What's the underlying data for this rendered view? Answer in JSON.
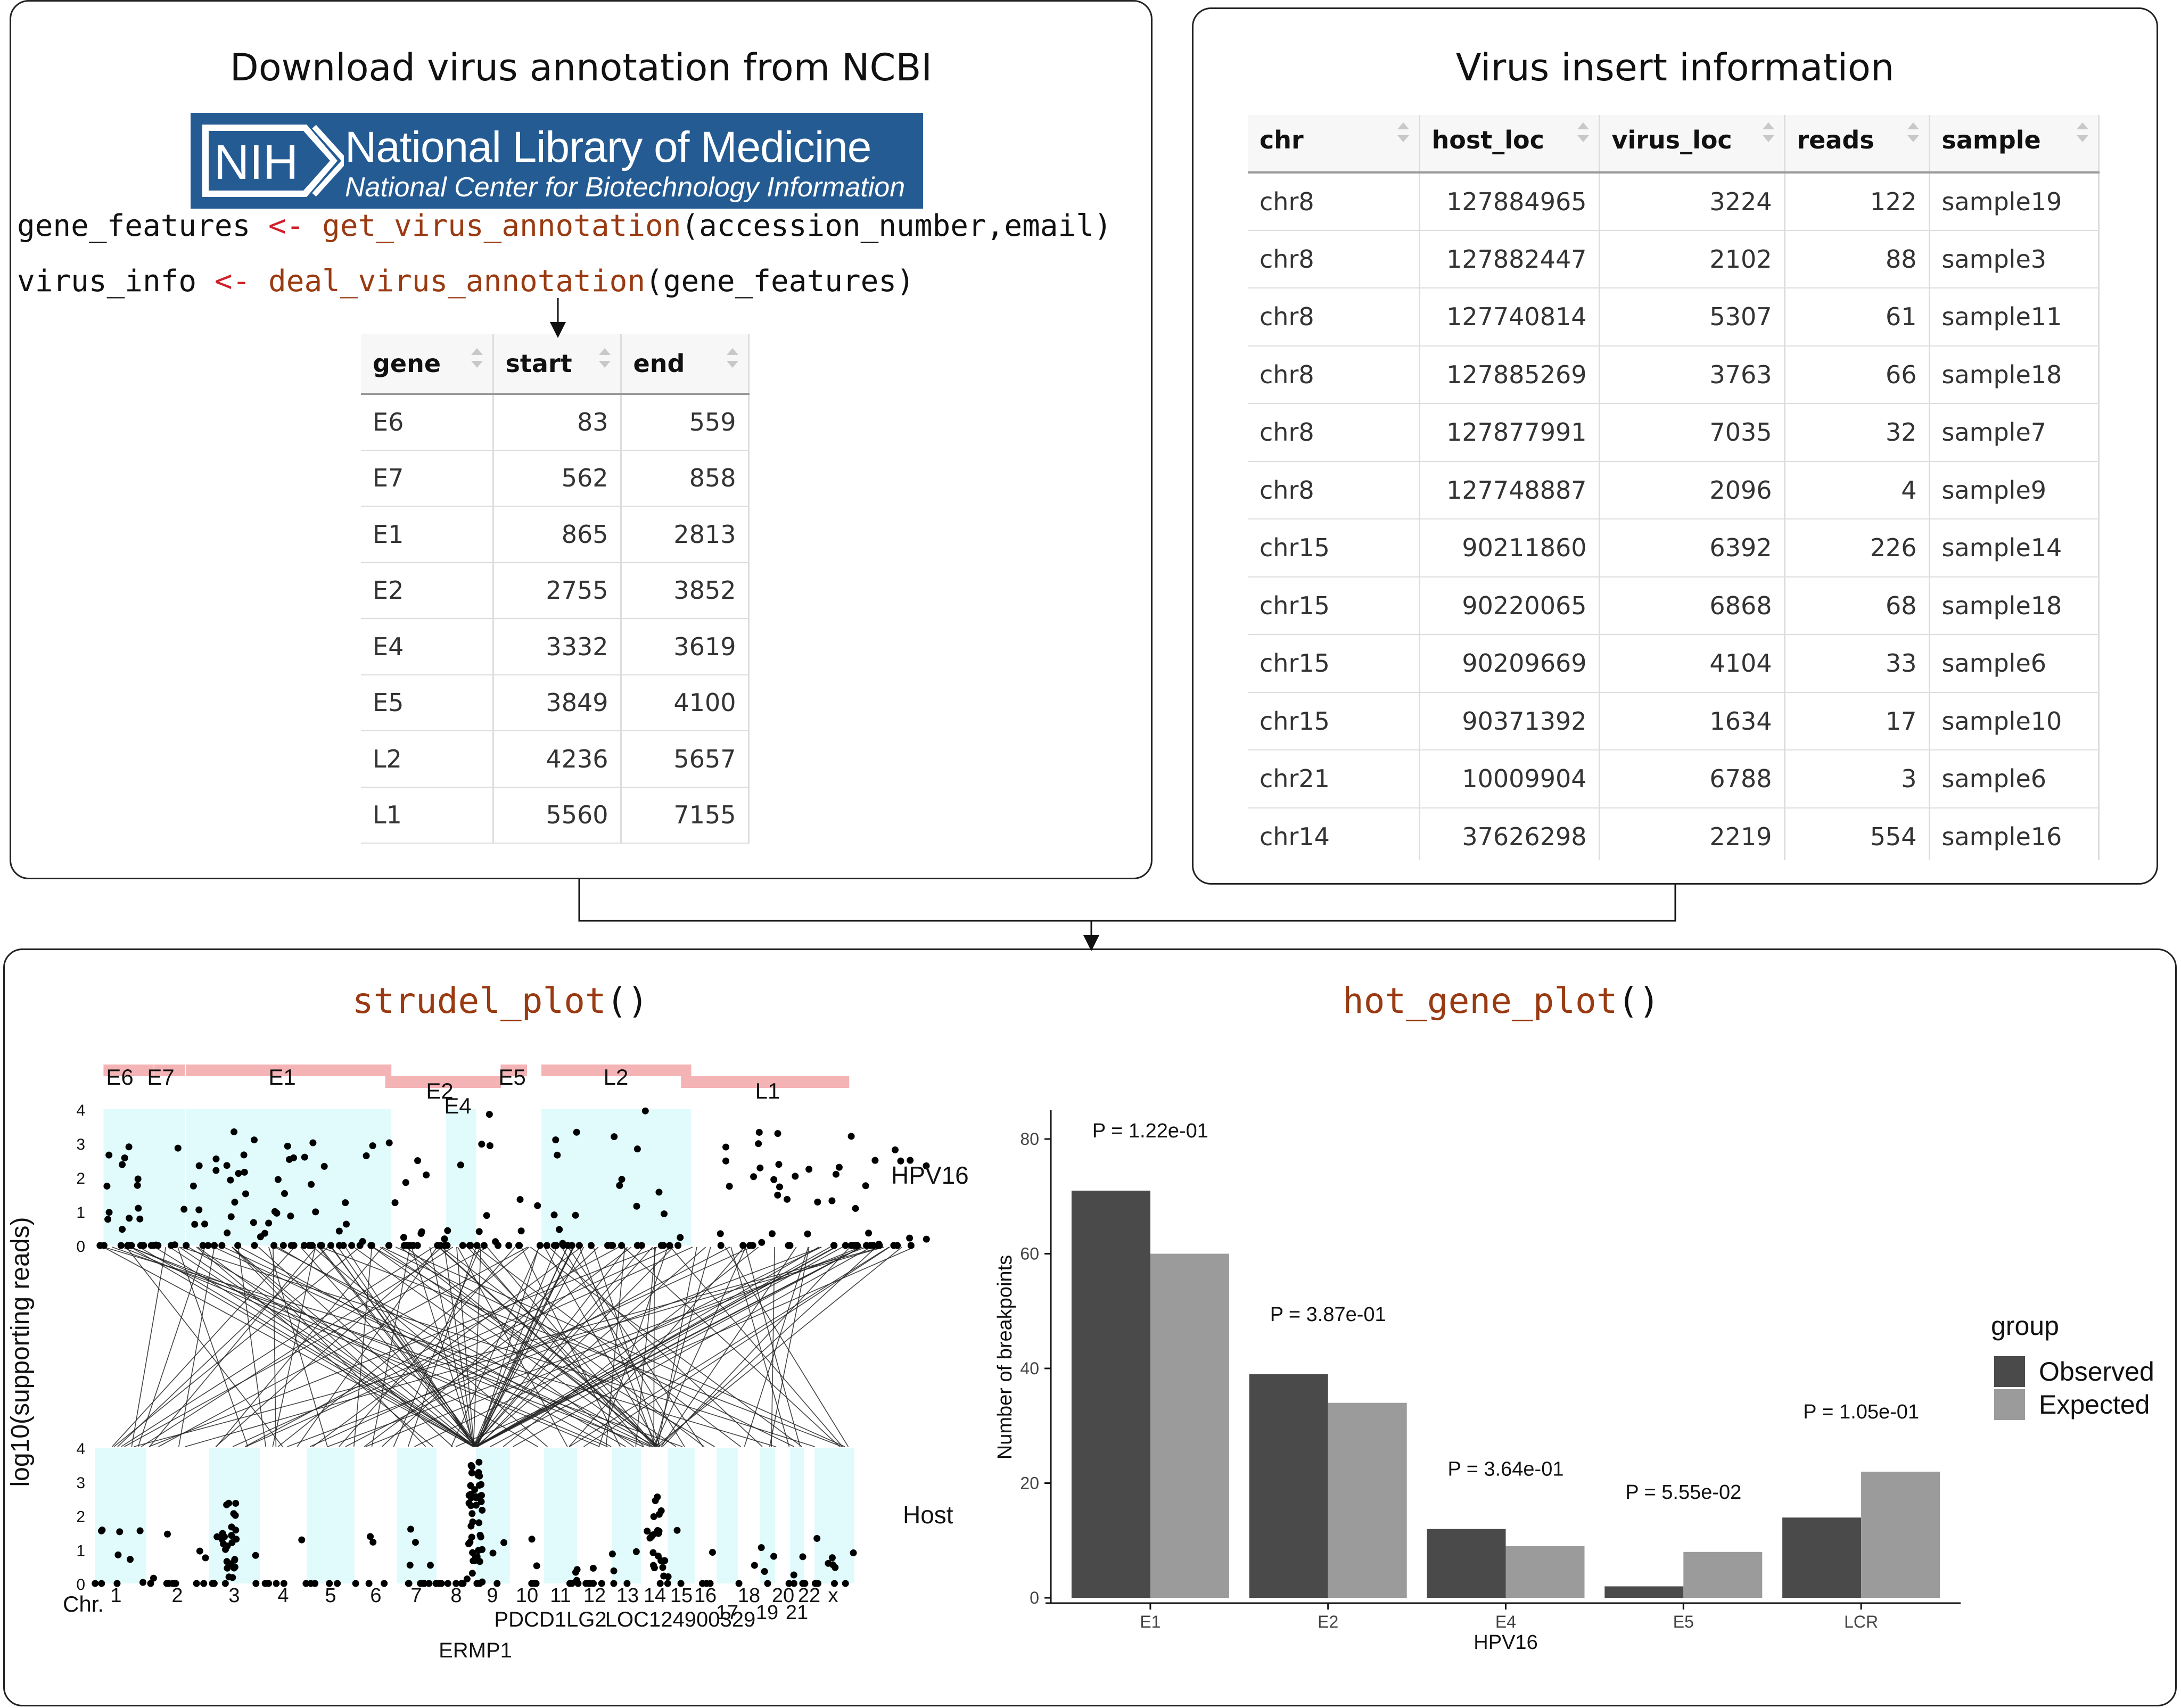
{
  "left_panel": {
    "title": "Download virus annotation from NCBI",
    "logo": {
      "badge": "NIH",
      "line1": "National Library of Medicine",
      "line2": "National Center for Biotechnology Information"
    },
    "code1": {
      "var": "gene_features",
      "op": "<-",
      "fn": "get_virus_annotation",
      "args": "(accession_number,email)"
    },
    "code2": {
      "var": "virus_info",
      "op": "<-",
      "fn": "deal_virus_annotation",
      "args": "(gene_features)"
    },
    "table": {
      "columns": [
        "gene",
        "start",
        "end"
      ],
      "rows": [
        [
          "E6",
          "83",
          "559"
        ],
        [
          "E7",
          "562",
          "858"
        ],
        [
          "E1",
          "865",
          "2813"
        ],
        [
          "E2",
          "2755",
          "3852"
        ],
        [
          "E4",
          "3332",
          "3619"
        ],
        [
          "E5",
          "3849",
          "4100"
        ],
        [
          "L2",
          "4236",
          "5657"
        ],
        [
          "L1",
          "5560",
          "7155"
        ]
      ]
    }
  },
  "right_panel": {
    "title": "Virus insert information",
    "table": {
      "columns": [
        "chr",
        "host_loc",
        "virus_loc",
        "reads",
        "sample"
      ],
      "rows": [
        [
          "chr8",
          "127884965",
          "3224",
          "122",
          "sample19"
        ],
        [
          "chr8",
          "127882447",
          "2102",
          "88",
          "sample3"
        ],
        [
          "chr8",
          "127740814",
          "5307",
          "61",
          "sample11"
        ],
        [
          "chr8",
          "127885269",
          "3763",
          "66",
          "sample18"
        ],
        [
          "chr8",
          "127877991",
          "7035",
          "32",
          "sample7"
        ],
        [
          "chr8",
          "127748887",
          "2096",
          "4",
          "sample9"
        ],
        [
          "chr15",
          "90211860",
          "6392",
          "226",
          "sample14"
        ],
        [
          "chr15",
          "90220065",
          "6868",
          "68",
          "sample18"
        ],
        [
          "chr15",
          "90209669",
          "4104",
          "33",
          "sample6"
        ],
        [
          "chr15",
          "90371392",
          "1634",
          "17",
          "sample10"
        ],
        [
          "chr21",
          "10009904",
          "6788",
          "3",
          "sample6"
        ],
        [
          "chr14",
          "37626298",
          "2219",
          "554",
          "sample16"
        ]
      ]
    }
  },
  "bottom_panel": {
    "strudel": {
      "title_fn": "strudel_plot",
      "title_paren": "()",
      "ylabel": "log10(supporting reads)",
      "virus_label": "HPV16",
      "host_label": "Host",
      "chr_label": "Chr.",
      "genes": [
        {
          "name": "E6",
          "start": 83,
          "end": 559
        },
        {
          "name": "E7",
          "start": 562,
          "end": 858
        },
        {
          "name": "E1",
          "start": 865,
          "end": 2813
        },
        {
          "name": "E2",
          "start": 2755,
          "end": 3852
        },
        {
          "name": "E4",
          "start": 3332,
          "end": 3619
        },
        {
          "name": "E5",
          "start": 3849,
          "end": 4100
        },
        {
          "name": "L2",
          "start": 4236,
          "end": 5657
        },
        {
          "name": "L1",
          "start": 5560,
          "end": 7155
        }
      ],
      "yticks": [
        "0",
        "1",
        "2",
        "3",
        "4"
      ],
      "chromosomes": [
        "1",
        "2",
        "3",
        "4",
        "5",
        "6",
        "7",
        "8",
        "9",
        "10",
        "11",
        "12",
        "13",
        "14",
        "15",
        "16",
        "17",
        "18",
        "19",
        "20",
        "21",
        "22",
        "x"
      ],
      "host_genes": [
        "PDCD1LG2",
        "LOC124900329",
        "ERMP1"
      ]
    },
    "hot_gene": {
      "title_fn": "hot_gene_plot",
      "title_paren": "()",
      "chart_data": {
        "type": "bar",
        "categories": [
          "E1",
          "E2",
          "E4",
          "E5",
          "LCR"
        ],
        "series": [
          {
            "name": "Observed",
            "values": [
              71,
              39,
              12,
              2,
              14
            ]
          },
          {
            "name": "Expected",
            "values": [
              60,
              34,
              9,
              8,
              22
            ]
          }
        ],
        "pvalues": [
          "P = 1.22e-01",
          "P = 3.87e-01",
          "P = 3.64e-01",
          "P = 5.55e-02",
          "P = 1.05e-01"
        ],
        "xlabel": "HPV16",
        "ylabel": "Number of breakpoints",
        "ylim": [
          0,
          85
        ],
        "yticks": [
          0,
          20,
          40,
          60,
          80
        ],
        "legend_title": "group",
        "legend_position": "right",
        "colors": {
          "Observed": "#4a4a4a",
          "Expected": "#9b9b9b"
        }
      }
    },
    "colors": {
      "gene_bar": "#f4b3b5",
      "region_shade": "#e1fbfd",
      "fn": "#9a3a12",
      "op": "#d0202a"
    }
  }
}
